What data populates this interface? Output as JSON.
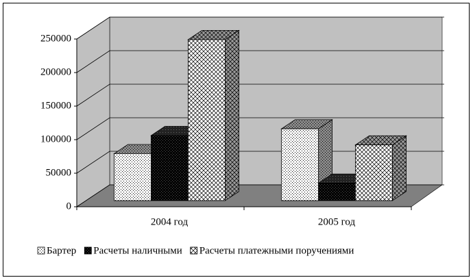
{
  "chart_data": {
    "type": "bar3d",
    "categories": [
      "2004 год",
      "2005 год"
    ],
    "series": [
      {
        "name": "Бартер",
        "pattern": "dots",
        "values": [
          70000,
          107000
        ]
      },
      {
        "name": "Расчеты наличными",
        "pattern": "dark",
        "values": [
          97000,
          26000
        ]
      },
      {
        "name": "Расчеты платежными поручениями",
        "pattern": "crosshatch",
        "values": [
          240000,
          83000
        ]
      }
    ],
    "ylim": [
      0,
      250000
    ],
    "yticks": [
      0,
      50000,
      100000,
      150000,
      200000,
      250000
    ],
    "grid": true,
    "legend": "bottom"
  }
}
